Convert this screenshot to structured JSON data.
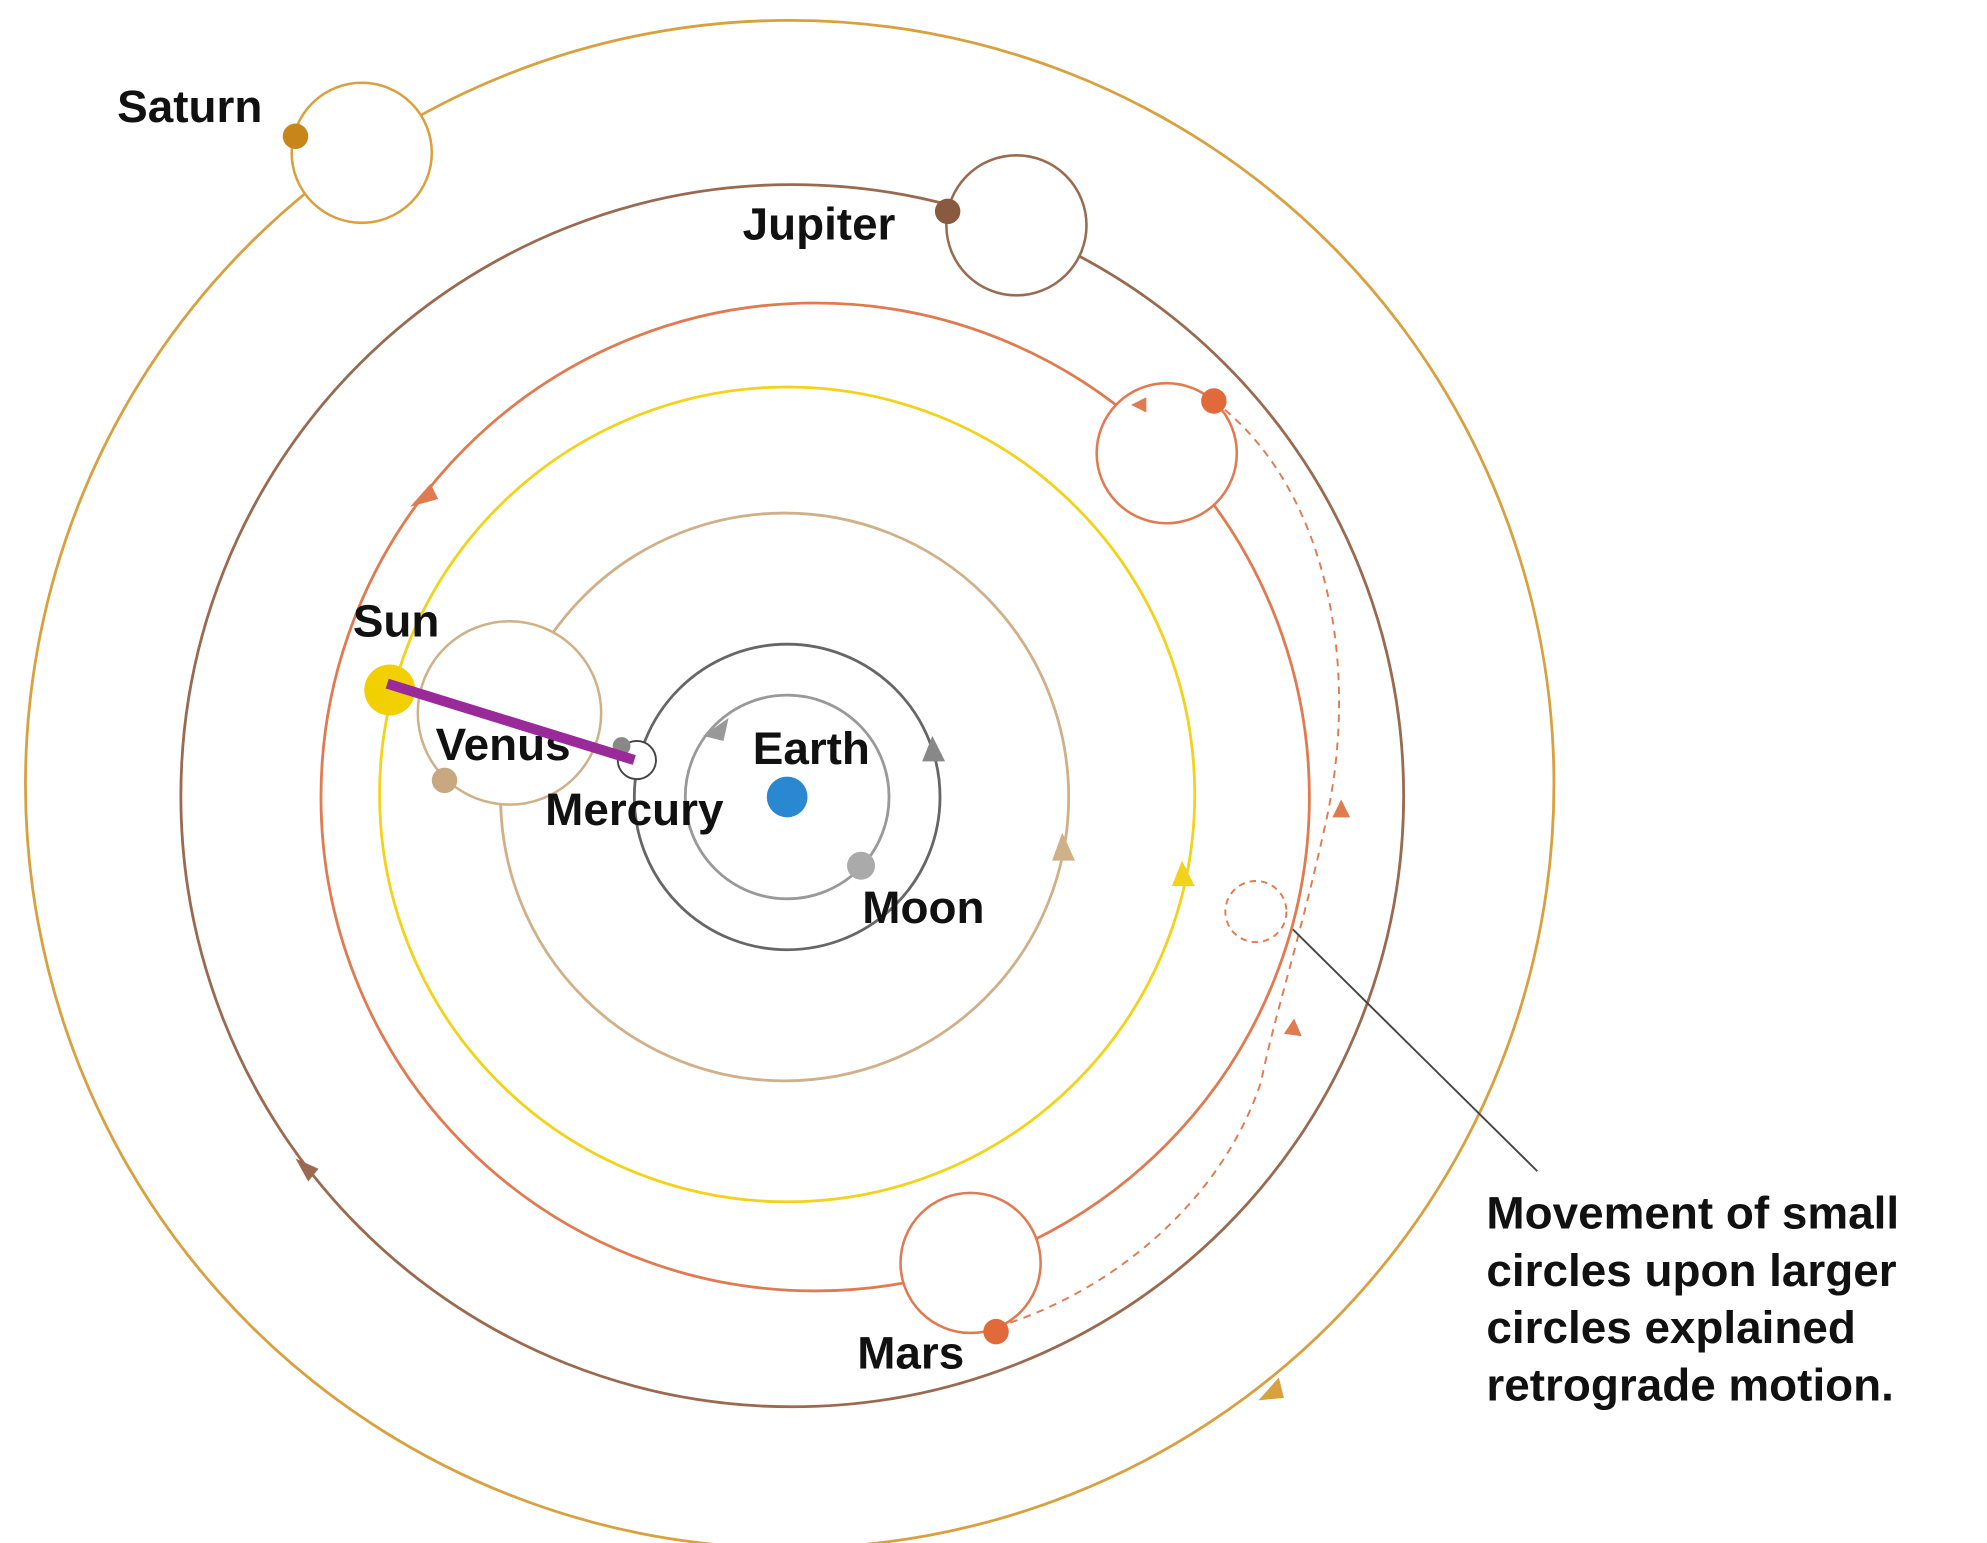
{
  "labels": {
    "saturn": "Saturn",
    "jupiter": "Jupiter",
    "sun": "Sun",
    "venus": "Venus",
    "earth": "Earth",
    "mercury": "Mercury",
    "moon": "Moon",
    "mars": "Mars"
  },
  "caption": [
    "Movement of small",
    "circles upon larger",
    "circles explained",
    "retrograde motion."
  ]
}
